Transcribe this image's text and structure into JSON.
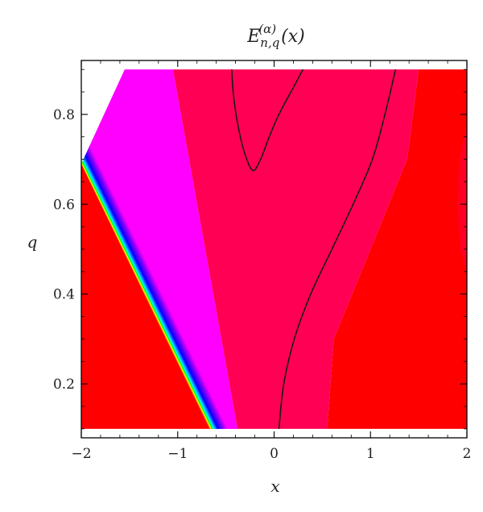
{
  "chart_data": {
    "type": "contour",
    "title": {
      "base": "E",
      "sub": "n,q",
      "sup": "(α)",
      "arg": "(x)"
    },
    "xlabel": "x",
    "ylabel": "q",
    "xlim": [
      -2.0,
      2.0
    ],
    "ylim": [
      0.1,
      0.9
    ],
    "frame_ylim": [
      0.08,
      0.92
    ],
    "xticks": [
      -2,
      -1,
      0,
      1,
      2
    ],
    "xtick_labels": [
      "−2",
      "−1",
      "0",
      "1",
      "2"
    ],
    "yticks": [
      0.2,
      0.4,
      0.6,
      0.8
    ],
    "ytick_labels": [
      "0.2",
      "0.4",
      "0.6",
      "0.8"
    ],
    "colors": {
      "red": "#ff0000",
      "crimson": "#ff0055",
      "magenta": "#ff00ff",
      "violet": "#a000ff",
      "blue": "#0000ff",
      "cyan": "#00ffff",
      "green": "#00ff00",
      "yellow": "#ffff00",
      "contour_line": "#1a1a1a",
      "frame": "#000000"
    },
    "regions": [
      {
        "name": "red-lower-left",
        "color": "#ff0000",
        "points": [
          [
            -2.0,
            0.1
          ],
          [
            -0.67,
            0.1
          ],
          [
            -2.0,
            0.69
          ]
        ]
      },
      {
        "name": "magenta-band",
        "color": "#ff00ff",
        "points": [
          [
            -1.55,
            0.9
          ],
          [
            -1.05,
            0.9
          ],
          [
            -0.38,
            0.1
          ],
          [
            -0.67,
            0.1
          ]
        ]
      },
      {
        "name": "crimson-main",
        "color": "#ff0055",
        "points": [
          [
            -1.05,
            0.9
          ],
          [
            1.5,
            0.9
          ],
          [
            1.38,
            0.7
          ],
          [
            1.0,
            0.5
          ],
          [
            0.62,
            0.3
          ],
          [
            0.55,
            0.1
          ],
          [
            -0.38,
            0.1
          ]
        ]
      },
      {
        "name": "red-right",
        "color": "#ff0000",
        "points": [
          [
            1.5,
            0.9
          ],
          [
            2.0,
            0.9
          ],
          [
            2.0,
            0.1
          ],
          [
            0.55,
            0.1
          ],
          [
            0.62,
            0.3
          ],
          [
            1.0,
            0.5
          ],
          [
            1.38,
            0.7
          ]
        ]
      },
      {
        "name": "red-far-right",
        "color": "#ff0022",
        "points": [
          [
            2.0,
            0.78
          ],
          [
            1.92,
            0.7
          ],
          [
            1.9,
            0.6
          ],
          [
            1.93,
            0.5
          ],
          [
            2.0,
            0.45
          ]
        ]
      }
    ],
    "rainbow_band": {
      "lower_edge": [
        [
          -2.0,
          0.69
        ],
        [
          -0.67,
          0.1
        ]
      ],
      "upper_edge": [
        [
          -1.55,
          0.9
        ],
        [
          -0.38,
          0.1
        ]
      ],
      "stops": [
        {
          "t": 0.0,
          "color": "#ff0000"
        },
        {
          "t": 0.02,
          "color": "#ff6a00"
        },
        {
          "t": 0.05,
          "color": "#ffff00"
        },
        {
          "t": 0.1,
          "color": "#00ff00"
        },
        {
          "t": 0.15,
          "color": "#00ffff"
        },
        {
          "t": 0.3,
          "color": "#0000ff"
        },
        {
          "t": 0.48,
          "color": "#7a00ff"
        },
        {
          "t": 0.65,
          "color": "#ff00ff"
        },
        {
          "t": 1.0,
          "color": "#ff00ff"
        }
      ]
    },
    "contour_lines": [
      {
        "name": "loop-contour",
        "points": [
          [
            -0.44,
            0.9
          ],
          [
            -0.42,
            0.84
          ],
          [
            -0.37,
            0.77
          ],
          [
            -0.3,
            0.71
          ],
          [
            -0.22,
            0.675
          ],
          [
            -0.14,
            0.7
          ],
          [
            -0.05,
            0.75
          ],
          [
            0.05,
            0.8
          ],
          [
            0.2,
            0.86
          ],
          [
            0.3,
            0.9
          ]
        ]
      },
      {
        "name": "right-contour",
        "points": [
          [
            0.05,
            0.1
          ],
          [
            0.1,
            0.2
          ],
          [
            0.21,
            0.3
          ],
          [
            0.38,
            0.4
          ],
          [
            0.6,
            0.5
          ],
          [
            0.82,
            0.6
          ],
          [
            1.02,
            0.7
          ],
          [
            1.15,
            0.8
          ],
          [
            1.26,
            0.9
          ]
        ]
      }
    ]
  }
}
